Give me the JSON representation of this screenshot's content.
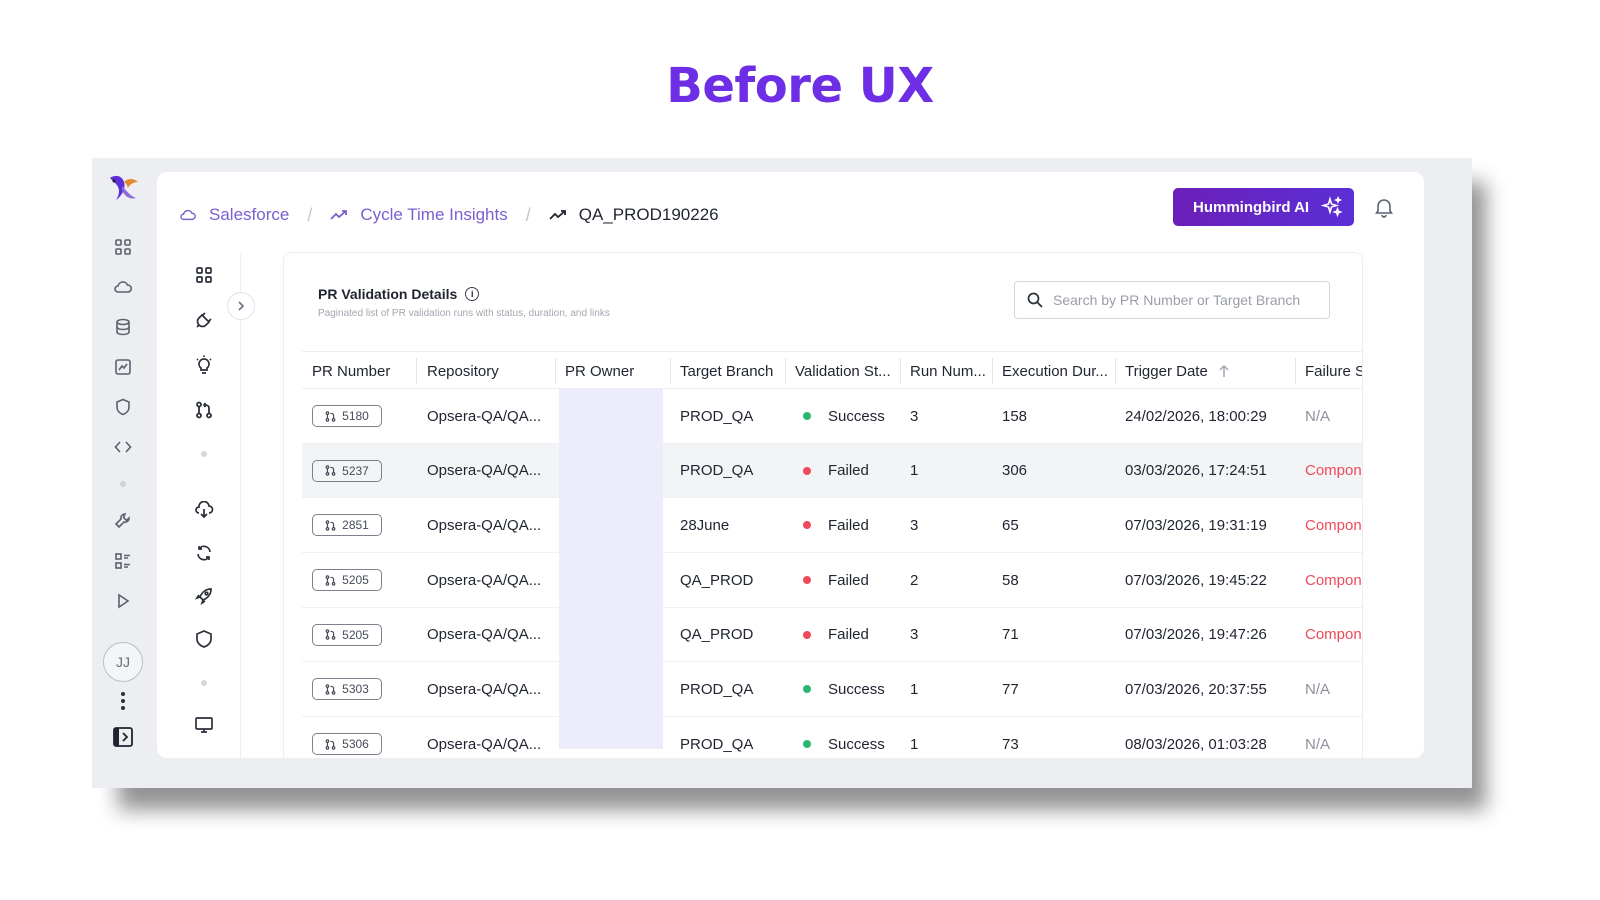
{
  "heading": "Before UX",
  "breadcrumb": {
    "items": [
      {
        "label": "Salesforce",
        "icon": "cloud-icon"
      },
      {
        "label": "Cycle Time Insights",
        "icon": "trend-icon"
      }
    ],
    "current": "QA_PROD190226"
  },
  "header": {
    "ai_button_label": "Hummingbird AI"
  },
  "user": {
    "initials": "JJ"
  },
  "card": {
    "title": "PR Validation Details",
    "subtitle": "Paginated list of PR validation runs with status, duration, and links",
    "search_placeholder": "Search by PR Number or Target Branch"
  },
  "table": {
    "columns": [
      "PR Number",
      "Repository",
      "PR Owner",
      "Target Branch",
      "Validation St...",
      "Run Num...",
      "Execution Dur...",
      "Trigger Date",
      "Failure St"
    ],
    "rows": [
      {
        "pr": "5180",
        "repo": "Opsera-QA/QA...",
        "branch": "PROD_QA",
        "status": "Success",
        "run": "3",
        "duration": "158",
        "date": "24/02/2026, 18:00:29",
        "failure": "N/A"
      },
      {
        "pr": "5237",
        "repo": "Opsera-QA/QA...",
        "branch": "PROD_QA",
        "status": "Failed",
        "run": "1",
        "duration": "306",
        "date": "03/03/2026, 17:24:51",
        "failure": "Compone"
      },
      {
        "pr": "2851",
        "repo": "Opsera-QA/QA...",
        "branch": "28June",
        "status": "Failed",
        "run": "3",
        "duration": "65",
        "date": "07/03/2026, 19:31:19",
        "failure": "Compone"
      },
      {
        "pr": "5205",
        "repo": "Opsera-QA/QA...",
        "branch": "QA_PROD",
        "status": "Failed",
        "run": "2",
        "duration": "58",
        "date": "07/03/2026, 19:45:22",
        "failure": "Compone"
      },
      {
        "pr": "5205",
        "repo": "Opsera-QA/QA...",
        "branch": "QA_PROD",
        "status": "Failed",
        "run": "3",
        "duration": "71",
        "date": "07/03/2026, 19:47:26",
        "failure": "Compone"
      },
      {
        "pr": "5303",
        "repo": "Opsera-QA/QA...",
        "branch": "PROD_QA",
        "status": "Success",
        "run": "1",
        "duration": "77",
        "date": "07/03/2026, 20:37:55",
        "failure": "N/A"
      },
      {
        "pr": "5306",
        "repo": "Opsera-QA/QA...",
        "branch": "PROD_QA",
        "status": "Success",
        "run": "1",
        "duration": "73",
        "date": "08/03/2026, 01:03:28",
        "failure": "N/A"
      }
    ]
  },
  "colors": {
    "accent": "#6d2ee6",
    "success": "#2bb673",
    "failure": "#ef4a5a",
    "owner_mask": "#ececfb"
  }
}
